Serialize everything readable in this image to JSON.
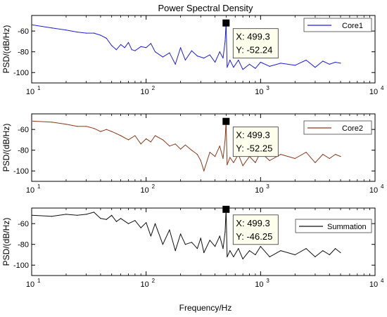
{
  "title": "Power Spectral Density",
  "xlabel": "Frequency/Hz",
  "chart_data": [
    {
      "type": "line",
      "title": "Power Spectral Density",
      "ylabel": "PSD/(dB/Hz)",
      "xlabel": "",
      "xscale": "log",
      "xlim": [
        10,
        10000
      ],
      "ylim": [
        -110,
        -45
      ],
      "xticks": [
        "10",
        "10",
        "10",
        "10"
      ],
      "xtick_exponents": [
        "1",
        "2",
        "3",
        "4"
      ],
      "yticks": [
        -60,
        -80,
        -100
      ],
      "legend_position": "top-right",
      "datatip": {
        "x_label": "X: 499.3",
        "y_label": "Y: -52.24",
        "x": 499.3,
        "y": -52.24
      },
      "series": [
        {
          "name": "Core1",
          "color": "#1f1fe0",
          "x": [
            10,
            15,
            20,
            25,
            30,
            35,
            40,
            45,
            50,
            55,
            60,
            65,
            70,
            75,
            80,
            90,
            100,
            110,
            120,
            140,
            160,
            180,
            200,
            220,
            250,
            280,
            320,
            360,
            400,
            440,
            470,
            490,
            499.3,
            510,
            540,
            580,
            640,
            700,
            800,
            900,
            1000,
            1200,
            1500,
            2000,
            2500,
            3000,
            3500,
            4000,
            4500,
            5000
          ],
          "y": [
            -54,
            -57,
            -59,
            -61,
            -62,
            -62,
            -64,
            -67,
            -74,
            -78,
            -73,
            -76,
            -71,
            -78,
            -79,
            -75,
            -76,
            -72,
            -80,
            -85,
            -81,
            -92,
            -76,
            -88,
            -79,
            -84,
            -86,
            -83,
            -90,
            -80,
            -86,
            -70,
            -52.24,
            -95,
            -88,
            -95,
            -88,
            -97,
            -92,
            -96,
            -90,
            -94,
            -91,
            -93,
            -88,
            -95,
            -89,
            -92,
            -90,
            -91
          ]
        }
      ]
    },
    {
      "type": "line",
      "ylabel": "PSD/(dB/Hz)",
      "xlabel": "",
      "xscale": "log",
      "xlim": [
        10,
        10000
      ],
      "ylim": [
        -110,
        -45
      ],
      "xticks": [
        "10",
        "10",
        "10",
        "10"
      ],
      "xtick_exponents": [
        "1",
        "2",
        "3",
        "4"
      ],
      "yticks": [
        -60,
        -80,
        -100
      ],
      "legend_position": "top-right",
      "datatip": {
        "x_label": "X: 499.3",
        "y_label": "Y: -52.25",
        "x": 499.3,
        "y": -52.25
      },
      "series": [
        {
          "name": "Core2",
          "color": "#8b3a1a",
          "x": [
            10,
            15,
            20,
            25,
            30,
            35,
            40,
            45,
            50,
            55,
            60,
            70,
            80,
            90,
            100,
            110,
            120,
            140,
            160,
            180,
            200,
            220,
            250,
            280,
            300,
            320,
            360,
            400,
            440,
            470,
            490,
            499.3,
            510,
            540,
            580,
            640,
            700,
            800,
            900,
            1000,
            1200,
            1500,
            2000,
            2500,
            3000,
            3500,
            4000,
            4500,
            5000
          ],
          "y": [
            -52,
            -53,
            -55,
            -57,
            -57,
            -59,
            -62,
            -60,
            -62,
            -64,
            -66,
            -70,
            -66,
            -74,
            -69,
            -72,
            -66,
            -70,
            -76,
            -74,
            -79,
            -75,
            -80,
            -84,
            -90,
            -100,
            -82,
            -86,
            -76,
            -88,
            -70,
            -52.25,
            -94,
            -87,
            -92,
            -84,
            -95,
            -86,
            -92,
            -82,
            -90,
            -84,
            -88,
            -82,
            -92,
            -84,
            -88,
            -84,
            -86
          ]
        }
      ]
    },
    {
      "type": "line",
      "ylabel": "PSD/(dB/Hz)",
      "xlabel": "Frequency/Hz",
      "xscale": "log",
      "xlim": [
        10,
        10000
      ],
      "ylim": [
        -110,
        -45
      ],
      "xticks": [
        "10",
        "10",
        "10",
        "10"
      ],
      "xtick_exponents": [
        "1",
        "2",
        "3",
        "4"
      ],
      "yticks": [
        -60,
        -80,
        -100
      ],
      "legend_position": "top-right",
      "datatip": {
        "x_label": "X: 499.3",
        "y_label": "Y: -46.25",
        "x": 499.3,
        "y": -46.25
      },
      "series": [
        {
          "name": "Summation",
          "color": "#111111",
          "x": [
            10,
            15,
            20,
            25,
            30,
            35,
            40,
            45,
            50,
            55,
            60,
            70,
            80,
            90,
            100,
            110,
            120,
            140,
            160,
            180,
            200,
            220,
            250,
            280,
            300,
            320,
            360,
            400,
            440,
            470,
            490,
            499.3,
            510,
            540,
            580,
            640,
            700,
            800,
            900,
            1000,
            1200,
            1500,
            2000,
            2500,
            3000,
            3500,
            4000,
            4500,
            5000
          ],
          "y": [
            -52,
            -53,
            -51,
            -52,
            -51,
            -49,
            -55,
            -56,
            -52,
            -58,
            -55,
            -60,
            -57,
            -64,
            -59,
            -72,
            -60,
            -80,
            -66,
            -86,
            -70,
            -80,
            -78,
            -84,
            -74,
            -88,
            -76,
            -82,
            -72,
            -84,
            -68,
            -46.25,
            -92,
            -86,
            -92,
            -84,
            -94,
            -86,
            -90,
            -82,
            -92,
            -86,
            -90,
            -84,
            -92,
            -86,
            -90,
            -84,
            -88
          ]
        }
      ]
    }
  ]
}
